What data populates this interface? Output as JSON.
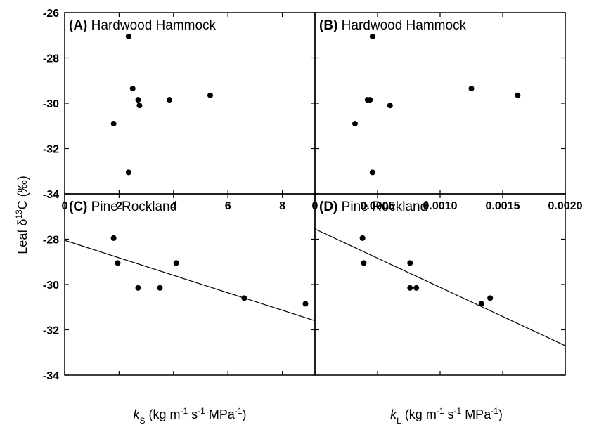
{
  "figure": {
    "ylabel_prefix": "Leaf δ",
    "ylabel_sup": "13",
    "ylabel_suffix": "C (‰)",
    "xlabel_left": {
      "var": "k",
      "sub": "S",
      "unit_a": " (kg m",
      "sup_a": "-1",
      "unit_b": " s",
      "sup_b": "-1",
      "unit_c": " MPa",
      "sup_c": "-1",
      "unit_d": ")"
    },
    "xlabel_right": {
      "var": "k",
      "sub": "L",
      "unit_a": " (kg m",
      "sup_a": "-1",
      "unit_b": " s",
      "sup_b": "-1",
      "unit_c": " MPa",
      "sup_c": "-1",
      "unit_d": ")"
    }
  },
  "chart_data": [
    {
      "type": "scatter",
      "panel": "A",
      "letter": "(A)",
      "title": "Hardwood Hammock",
      "xlim": [
        0,
        9.2
      ],
      "ylim": [
        -34,
        -26
      ],
      "xticks": [
        "0",
        "2",
        "4",
        "6",
        "8"
      ],
      "xtick_values": [
        0,
        2,
        4,
        6,
        8
      ],
      "yticks": [
        "-34",
        "-32",
        "-30",
        "-28",
        "-26"
      ],
      "ytick_values": [
        -34,
        -32,
        -30,
        -28,
        -26
      ],
      "points": [
        {
          "x": 2.35,
          "y": -27.05
        },
        {
          "x": 2.5,
          "y": -29.35
        },
        {
          "x": 2.7,
          "y": -29.85
        },
        {
          "x": 2.75,
          "y": -30.1
        },
        {
          "x": 3.85,
          "y": -29.85
        },
        {
          "x": 5.35,
          "y": -29.65
        },
        {
          "x": 1.8,
          "y": -30.9
        },
        {
          "x": 2.35,
          "y": -33.05
        }
      ],
      "trendline": null
    },
    {
      "type": "scatter",
      "panel": "B",
      "letter": "(B)",
      "title": "Hardwood Hammock",
      "xlim": [
        0,
        0.002
      ],
      "ylim": [
        -34,
        -26
      ],
      "xticks": [
        "0",
        "0.0005",
        "0.0010",
        "0.0015",
        "0.0020"
      ],
      "xtick_values": [
        0,
        0.0005,
        0.001,
        0.0015,
        0.002
      ],
      "yticks": [],
      "ytick_values": [
        -34,
        -32,
        -30,
        -28,
        -26
      ],
      "points": [
        {
          "x": 0.00046,
          "y": -27.05
        },
        {
          "x": 0.00042,
          "y": -29.85
        },
        {
          "x": 0.00044,
          "y": -29.85
        },
        {
          "x": 0.0006,
          "y": -30.1
        },
        {
          "x": 0.00125,
          "y": -29.35
        },
        {
          "x": 0.00162,
          "y": -29.65
        },
        {
          "x": 0.00032,
          "y": -30.9
        },
        {
          "x": 0.00046,
          "y": -33.05
        }
      ],
      "trendline": null
    },
    {
      "type": "scatter",
      "panel": "C",
      "letter": "(C)",
      "title": "Pine Rockland",
      "xlim": [
        0,
        9.2
      ],
      "ylim": [
        -34,
        -26
      ],
      "xticks": [],
      "xtick_values": [
        0,
        2,
        4,
        6,
        8
      ],
      "yticks": [
        "-34",
        "-32",
        "-30",
        "-28"
      ],
      "ytick_values": [
        -34,
        -32,
        -30,
        -28
      ],
      "points": [
        {
          "x": 1.8,
          "y": -27.95
        },
        {
          "x": 1.95,
          "y": -29.05
        },
        {
          "x": 2.7,
          "y": -30.15
        },
        {
          "x": 3.5,
          "y": -30.15
        },
        {
          "x": 4.1,
          "y": -29.05
        },
        {
          "x": 6.6,
          "y": -30.6
        },
        {
          "x": 8.85,
          "y": -30.85
        }
      ],
      "trendline": {
        "x0": 0,
        "y0": -28.05,
        "x1": 9.2,
        "y1": -31.6
      }
    },
    {
      "type": "scatter",
      "panel": "D",
      "letter": "(D)",
      "title": "Pine Rockland",
      "xlim": [
        0,
        0.002
      ],
      "ylim": [
        -34,
        -26
      ],
      "xticks": [],
      "xtick_values": [
        0,
        0.0005,
        0.001,
        0.0015,
        0.002
      ],
      "yticks": [],
      "ytick_values": [
        -34,
        -32,
        -30,
        -28
      ],
      "points": [
        {
          "x": 0.00038,
          "y": -27.95
        },
        {
          "x": 0.00039,
          "y": -29.05
        },
        {
          "x": 0.00076,
          "y": -29.05
        },
        {
          "x": 0.00076,
          "y": -30.15
        },
        {
          "x": 0.00081,
          "y": -30.15
        },
        {
          "x": 0.0014,
          "y": -30.6
        },
        {
          "x": 0.00133,
          "y": -30.85
        }
      ],
      "trendline": {
        "x0": 0,
        "y0": -27.55,
        "x1": 0.002,
        "y1": -32.7
      }
    }
  ]
}
